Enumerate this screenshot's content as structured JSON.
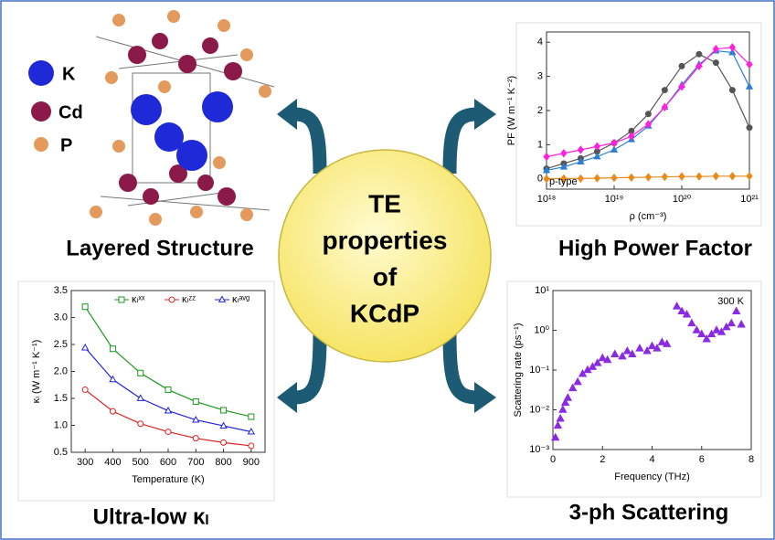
{
  "atom_legend": [
    "K",
    "Cd",
    "P"
  ],
  "captions": [
    "Layered Structure",
    "High Power Factor",
    "Ultra-low κₗ",
    "3-ph Scattering"
  ],
  "center": [
    "TE",
    "properties",
    "of",
    "KCdP"
  ],
  "chart_data": [
    {
      "type": "line",
      "xlabel": "ρ (cm⁻³)",
      "ylabel": "PF (W m⁻¹ K⁻²)",
      "annotation": "p-type",
      "xscale": "log",
      "x": [
        1e+18,
        1.8e+18,
        3.2e+18,
        5.6e+18,
        1e+19,
        1.8e+19,
        3.2e+19,
        5.6e+19,
        1e+20,
        1.8e+20,
        3.2e+20,
        5.6e+20,
        1e+21
      ],
      "xlim": [
        1e+18,
        1e+21
      ],
      "xticks": [
        {
          "value": 1e+18,
          "label": "10¹⁸"
        },
        {
          "value": 1e+19,
          "label": "10¹⁹"
        },
        {
          "value": 1e+20,
          "label": "10²⁰"
        },
        {
          "value": 1e+21,
          "label": "10²¹"
        }
      ],
      "ylim": [
        -0.3,
        4.3
      ],
      "yticks": [
        0,
        1,
        2,
        3,
        4
      ],
      "open_markers": false,
      "series": [
        {
          "color": "#555555",
          "marker": "circle",
          "values": [
            0.3,
            0.45,
            0.6,
            0.8,
            1.05,
            1.4,
            1.9,
            2.6,
            3.3,
            3.65,
            3.4,
            2.6,
            1.5
          ]
        },
        {
          "color": "#2a7fd4",
          "marker": "triangle",
          "values": [
            0.25,
            0.35,
            0.5,
            0.65,
            0.85,
            1.15,
            1.55,
            2.1,
            2.75,
            3.35,
            3.75,
            3.7,
            2.7
          ]
        },
        {
          "color": "#ff22dd",
          "marker": "diamond",
          "values": [
            0.65,
            0.75,
            0.85,
            0.95,
            1.05,
            1.25,
            1.6,
            2.1,
            2.7,
            3.3,
            3.8,
            3.85,
            3.35
          ]
        },
        {
          "color": "#e8891a",
          "marker": "diamond",
          "values": [
            0,
            0.01,
            0.01,
            0.02,
            0.03,
            0.04,
            0.05,
            0.06,
            0.07,
            0.07,
            0.08,
            0.08,
            0.08
          ]
        }
      ]
    },
    {
      "type": "line",
      "xlabel": "Temperature (K)",
      "ylabel": "κₗ (W m⁻¹ K⁻¹)",
      "legend": "top-right",
      "x": [
        300,
        400,
        500,
        600,
        700,
        800,
        900
      ],
      "xlim": [
        250,
        950
      ],
      "xticks": [
        300,
        400,
        500,
        600,
        700,
        800,
        900
      ],
      "ylim": [
        0.5,
        3.5
      ],
      "yticks": [
        0.5,
        {
          "value": 1,
          "label": "1.0"
        },
        1.5,
        {
          "value": 2,
          "label": "2.0"
        },
        2.5,
        {
          "value": 3,
          "label": "3.0"
        },
        3.5
      ],
      "open_markers": true,
      "series": [
        {
          "name": "κₗˣˣ",
          "color": "#1a9a1a",
          "marker": "square",
          "values": [
            3.2,
            2.42,
            1.97,
            1.66,
            1.44,
            1.28,
            1.16
          ]
        },
        {
          "name": "κₗᶻᶻ",
          "color": "#e02020",
          "marker": "circle",
          "values": [
            1.66,
            1.26,
            1.03,
            0.88,
            0.76,
            0.68,
            0.62
          ]
        },
        {
          "name": "κₗᵃᵛᵍ",
          "color": "#2020e0",
          "marker": "triangle",
          "values": [
            2.44,
            1.85,
            1.5,
            1.27,
            1.1,
            0.99,
            0.88
          ]
        }
      ]
    },
    {
      "type": "scatter",
      "xlabel": "Frequency (THz)",
      "ylabel": "Scattering rate (ps⁻¹)",
      "annotation": "300 K",
      "yscale": "log",
      "x": [
        0.1,
        0.2,
        0.3,
        0.4,
        0.5,
        0.6,
        0.8,
        1.0,
        1.2,
        1.4,
        1.6,
        1.8,
        2.0,
        2.2,
        2.5,
        2.8,
        3.0,
        3.2,
        3.5,
        3.8,
        4.0,
        4.2,
        4.4,
        4.6,
        5.0,
        5.2,
        5.4,
        5.6,
        5.8,
        6.0,
        6.2,
        6.4,
        6.6,
        6.8,
        7.0,
        7.2,
        7.4,
        7.6
      ],
      "xlim": [
        0,
        8
      ],
      "xticks": [
        0,
        2,
        4,
        6,
        8
      ],
      "ylim": [
        0.001,
        10
      ],
      "yticks": [
        {
          "value": 0.001,
          "label": "10⁻³"
        },
        {
          "value": 0.01,
          "label": "10⁻²"
        },
        {
          "value": 0.1,
          "label": "10⁻¹"
        },
        {
          "value": 1,
          "label": "10⁰"
        },
        {
          "value": 10,
          "label": "10¹"
        }
      ],
      "open_markers": false,
      "series": [
        {
          "color": "#8a2be2",
          "marker": "triangle",
          "values": [
            0.002,
            0.004,
            0.006,
            0.01,
            0.015,
            0.02,
            0.035,
            0.05,
            0.08,
            0.1,
            0.12,
            0.15,
            0.2,
            0.18,
            0.25,
            0.22,
            0.3,
            0.25,
            0.35,
            0.3,
            0.4,
            0.35,
            0.5,
            0.45,
            4,
            3,
            2.5,
            1.5,
            1,
            0.8,
            0.6,
            0.8,
            1,
            0.9,
            1.2,
            1.5,
            3,
            1.4
          ]
        }
      ]
    }
  ]
}
